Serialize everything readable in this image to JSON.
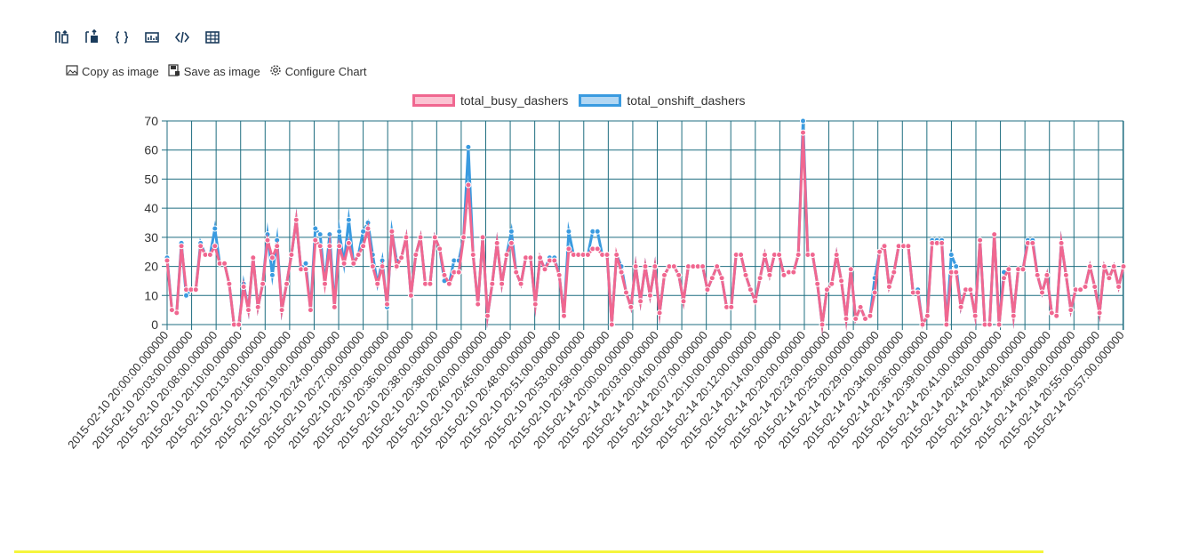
{
  "toolbar": {
    "buttons": [
      {
        "name": "export-csv-icon"
      },
      {
        "name": "export-excel-icon"
      },
      {
        "name": "export-json-icon"
      },
      {
        "name": "chart-icon"
      },
      {
        "name": "code-icon"
      },
      {
        "name": "table-icon"
      }
    ]
  },
  "actions": {
    "copy_label": "Copy as image",
    "save_label": "Save as image",
    "configure_label": "Configure Chart"
  },
  "colors": {
    "busy": "#f06790",
    "busy_fill": "#fbc3d2",
    "onshift": "#3a9be0",
    "onshift_fill": "#b2d7f3",
    "grid": "#1f6e80",
    "highlight": "#f5f53c"
  },
  "chart_data": {
    "type": "line",
    "ylim": [
      0,
      70
    ],
    "yticks": [
      0,
      10,
      20,
      30,
      40,
      50,
      60,
      70
    ],
    "xtick_labels": [
      "2015-02-10 20:00:00.000000",
      "2015-02-10 20:03:00.000000",
      "2015-02-10 20:08:00.000000",
      "2015-02-10 20:10:00.000000",
      "2015-02-10 20:13:00.000000",
      "2015-02-10 20:16:00.000000",
      "2015-02-10 20:19:00.000000",
      "2015-02-10 20:24:00.000000",
      "2015-02-10 20:27:00.000000",
      "2015-02-10 20:30:00.000000",
      "2015-02-10 20:36:00.000000",
      "2015-02-10 20:38:00.000000",
      "2015-02-10 20:38:00.000000",
      "2015-02-10 20:40:00.000000",
      "2015-02-10 20:45:00.000000",
      "2015-02-10 20:48:00.000000",
      "2015-02-10 20:51:00.000000",
      "2015-02-10 20:53:00.000000",
      "2015-02-10 20:58:00.000000",
      "2015-02-14 20:00:00.000000",
      "2015-02-14 20:03:00.000000",
      "2015-02-14 20:04:00.000000",
      "2015-02-14 20:07:00.000000",
      "2015-02-14 20:10:00.000000",
      "2015-02-14 20:12:00.000000",
      "2015-02-14 20:14:00.000000",
      "2015-02-14 20:20:00.000000",
      "2015-02-14 20:23:00.000000",
      "2015-02-14 20:25:00.000000",
      "2015-02-14 20:29:00.000000",
      "2015-02-14 20:34:00.000000",
      "2015-02-14 20:36:00.000000",
      "2015-02-14 20:39:00.000000",
      "2015-02-14 20:41:00.000000",
      "2015-02-14 20:43:00.000000",
      "2015-02-14 20:44:00.000000",
      "2015-02-14 20:46:00.000000",
      "2015-02-14 20:49:00.000000",
      "2015-02-14 20:55:00.000000",
      "2015-02-14 20:57:00.000000"
    ],
    "legend_position": "top",
    "series": [
      {
        "name": "total_busy_dashers",
        "values": [
          22,
          5,
          4,
          27,
          12,
          12,
          12,
          27,
          24,
          24,
          27,
          21,
          21,
          14,
          0,
          0,
          13,
          5,
          23,
          6,
          14,
          29,
          23,
          27,
          5,
          14,
          24,
          36,
          19,
          19,
          5,
          29,
          27,
          14,
          27,
          6,
          27,
          21,
          28,
          21,
          24,
          27,
          33,
          20,
          14,
          20,
          7,
          32,
          20,
          23,
          30,
          10,
          24,
          30,
          14,
          14,
          30,
          26,
          17,
          14,
          18,
          18,
          30,
          48,
          24,
          7,
          30,
          3,
          14,
          28,
          14,
          24,
          28,
          18,
          14,
          23,
          23,
          7,
          23,
          19,
          22,
          22,
          17,
          3,
          26,
          24,
          24,
          24,
          24,
          26,
          26,
          24,
          24,
          0,
          24,
          18,
          11,
          6,
          20,
          8,
          20,
          10,
          20,
          4,
          17,
          20,
          20,
          17,
          8,
          20,
          20,
          20,
          20,
          12,
          16,
          20,
          16,
          6,
          6,
          24,
          24,
          17,
          12,
          8,
          16,
          24,
          17,
          24,
          24,
          17,
          18,
          18,
          24,
          66,
          24,
          24,
          14,
          0,
          12,
          14,
          24,
          15,
          2,
          19,
          2,
          6,
          2,
          3,
          11,
          25,
          27,
          13,
          18,
          27,
          27,
          27,
          11,
          11,
          0,
          3,
          28,
          28,
          28,
          0,
          18,
          18,
          6,
          12,
          12,
          3,
          29,
          0,
          0,
          31,
          0,
          16,
          19,
          3,
          19,
          19,
          28,
          28,
          17,
          11,
          17,
          4,
          3,
          28,
          17,
          5,
          12,
          12,
          13,
          20,
          13,
          4,
          20,
          16,
          20,
          13,
          20
        ],
        "color": "#f06790"
      },
      {
        "name": "total_onshift_dashers",
        "values": [
          23,
          5,
          4,
          28,
          10,
          12,
          12,
          28,
          24,
          24,
          33,
          21,
          21,
          14,
          0,
          0,
          14,
          5,
          23,
          6,
          14,
          31,
          17,
          29,
          5,
          14,
          24,
          36,
          19,
          21,
          5,
          33,
          31,
          14,
          31,
          6,
          32,
          21,
          36,
          21,
          24,
          32,
          35,
          24,
          14,
          22,
          6,
          32,
          22,
          23,
          30,
          10,
          24,
          30,
          14,
          14,
          30,
          26,
          15,
          14,
          22,
          22,
          30,
          61,
          24,
          7,
          30,
          3,
          14,
          28,
          14,
          24,
          32,
          18,
          14,
          23,
          23,
          7,
          23,
          19,
          23,
          23,
          17,
          3,
          32,
          24,
          24,
          24,
          24,
          32,
          32,
          24,
          24,
          0,
          24,
          20,
          11,
          6,
          20,
          8,
          20,
          10,
          20,
          4,
          17,
          20,
          20,
          17,
          8,
          20,
          20,
          20,
          20,
          12,
          16,
          20,
          16,
          6,
          6,
          24,
          24,
          17,
          12,
          8,
          16,
          24,
          17,
          24,
          24,
          17,
          18,
          18,
          24,
          70,
          24,
          24,
          14,
          0,
          12,
          14,
          24,
          15,
          2,
          19,
          2,
          6,
          2,
          3,
          16,
          25,
          27,
          13,
          18,
          27,
          27,
          27,
          11,
          12,
          0,
          3,
          29,
          29,
          29,
          0,
          24,
          20,
          6,
          12,
          12,
          3,
          29,
          0,
          0,
          31,
          0,
          18,
          19,
          3,
          19,
          19,
          29,
          29,
          17,
          11,
          17,
          4,
          3,
          28,
          17,
          5,
          12,
          12,
          13,
          20,
          13,
          4,
          20,
          16,
          20,
          13,
          20
        ],
        "color": "#3a9be0"
      }
    ]
  }
}
